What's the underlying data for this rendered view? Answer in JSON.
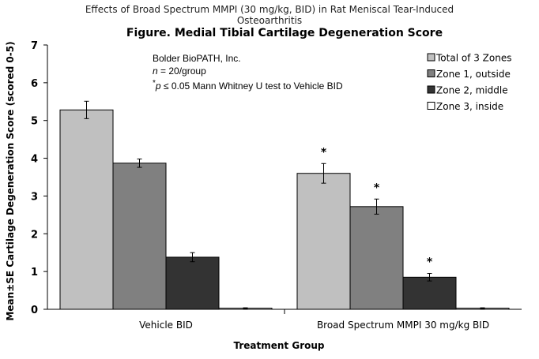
{
  "chart_data": {
    "type": "bar",
    "supertitle_line1": "Effects of Broad Spectrum MMPI (30 mg/kg, BID) in Rat Meniscal Tear-Induced",
    "supertitle_line2": "Osteoarthritis",
    "title": "Figure. Medial Tibial Cartilage Degeneration Score",
    "xlabel": "Treatment Group",
    "ylabel": "Mean±SE Cartilage Degeneration Score (scored 0-5)",
    "ylim": [
      0,
      7
    ],
    "yticks": [
      "0",
      "1",
      "2",
      "3",
      "4",
      "5",
      "6",
      "7"
    ],
    "categories": [
      "Vehicle BID",
      "Broad Spectrum MMPI 30 mg/kg BID"
    ],
    "series": [
      {
        "name": "Total of 3 Zones",
        "color": "#c0c0c0",
        "values": [
          5.28,
          3.6
        ],
        "errors": [
          0.23,
          0.26
        ],
        "significant": [
          false,
          true
        ]
      },
      {
        "name": "Zone 1, outside",
        "color": "#808080",
        "values": [
          3.87,
          2.72
        ],
        "errors": [
          0.11,
          0.2
        ],
        "significant": [
          false,
          true
        ]
      },
      {
        "name": "Zone 2, middle",
        "color": "#333333",
        "values": [
          1.38,
          0.85
        ],
        "errors": [
          0.12,
          0.1
        ],
        "significant": [
          false,
          true
        ]
      },
      {
        "name": "Zone 3, inside",
        "color": "#ffffff",
        "values": [
          0.03,
          0.03
        ],
        "errors": [
          0.01,
          0.01
        ],
        "significant": [
          false,
          false
        ]
      }
    ],
    "significance_marker": "*",
    "notes": {
      "line1": "Bolder BioPATH, Inc.",
      "line2_italic": "n",
      "line2_rest": " = 20/group",
      "line3_prefix": "*",
      "line3_italic": "p",
      "line3_rest": " ≤ 0.05 Mann Whitney U test to Vehicle BID"
    },
    "legend_position": "top-right",
    "grid": false
  }
}
